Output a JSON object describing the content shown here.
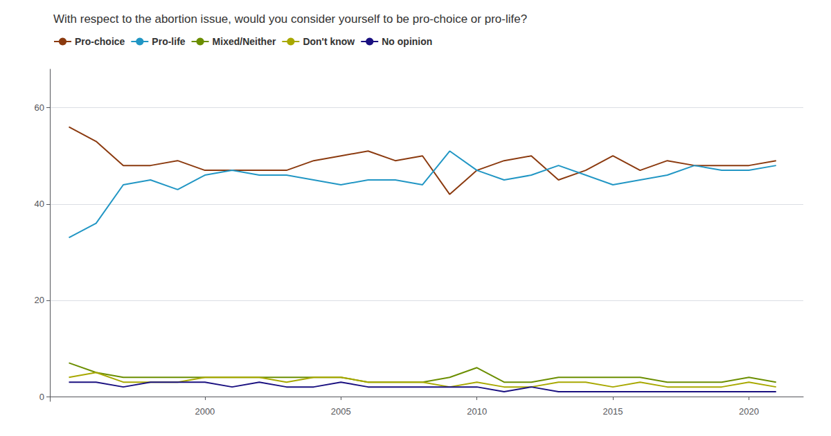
{
  "chart_data": {
    "type": "line",
    "title": "With respect to the abortion issue, would you consider yourself to be pro-choice or pro-life?",
    "x": [
      1995,
      1996,
      1997,
      1998,
      1999,
      2000,
      2001,
      2002,
      2003,
      2004,
      2005,
      2006,
      2007,
      2008,
      2009,
      2010,
      2011,
      2012,
      2013,
      2014,
      2015,
      2016,
      2017,
      2018,
      2019,
      2020,
      2021
    ],
    "series": [
      {
        "name": "Pro-choice",
        "color": "#8B3A0F",
        "values": [
          56,
          53,
          48,
          48,
          49,
          47,
          47,
          47,
          47,
          49,
          50,
          51,
          49,
          50,
          42,
          47,
          49,
          50,
          45,
          47,
          50,
          47,
          49,
          48,
          48,
          48,
          49
        ]
      },
      {
        "name": "Pro-life",
        "color": "#2196C4",
        "values": [
          33,
          36,
          44,
          45,
          43,
          46,
          47,
          46,
          46,
          45,
          44,
          45,
          45,
          44,
          51,
          47,
          45,
          46,
          48,
          46,
          44,
          45,
          46,
          48,
          47,
          47,
          48
        ]
      },
      {
        "name": "Mixed/Neither",
        "color": "#6B8E00",
        "values": [
          7,
          5,
          4,
          4,
          4,
          4,
          4,
          4,
          4,
          4,
          4,
          3,
          3,
          3,
          4,
          6,
          3,
          3,
          4,
          4,
          4,
          4,
          3,
          3,
          3,
          4,
          3
        ]
      },
      {
        "name": "Don't know",
        "color": "#A8A800",
        "values": [
          4,
          5,
          3,
          3,
          3,
          4,
          4,
          4,
          3,
          4,
          4,
          3,
          3,
          3,
          2,
          3,
          2,
          2,
          3,
          3,
          2,
          3,
          2,
          2,
          2,
          3,
          2
        ]
      },
      {
        "name": "No opinion",
        "color": "#1A1080",
        "values": [
          3,
          3,
          2,
          3,
          3,
          3,
          2,
          3,
          2,
          2,
          3,
          2,
          2,
          2,
          2,
          2,
          1,
          2,
          1,
          1,
          1,
          1,
          1,
          1,
          1,
          1,
          1
        ]
      }
    ],
    "xlim": [
      1994.3,
      2022.0
    ],
    "xticks": [
      2000,
      2005,
      2010,
      2015,
      2020
    ],
    "ylim": [
      -1,
      68
    ],
    "yticks": [
      0,
      20,
      40,
      60
    ],
    "grid": true,
    "legend": "top-left"
  }
}
